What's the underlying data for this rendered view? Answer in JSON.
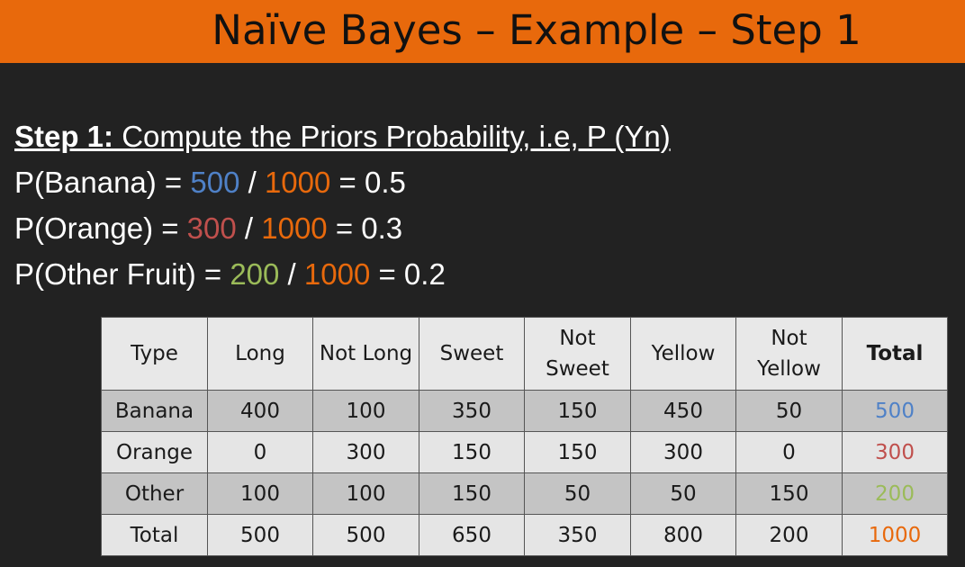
{
  "title": "Naïve Bayes – Example – Step 1",
  "step": {
    "label": "Step 1:",
    "description": " Compute the Priors Probability, i.e, P (Yn)"
  },
  "priors": [
    {
      "prefix": "P(Banana) = ",
      "count": "500",
      "separator": " / ",
      "total": "1000",
      "result": " = 0.5",
      "count_color": "#4f81c7"
    },
    {
      "prefix": "P(Orange) = ",
      "count": "300",
      "separator": " / ",
      "total": "1000",
      "result": " = 0.3",
      "count_color": "#c0504d"
    },
    {
      "prefix": "P(Other Fruit) = ",
      "count": "200",
      "separator": " / ",
      "total": "1000",
      "result": " = 0.2",
      "count_color": "#9bbb59"
    }
  ],
  "table": {
    "headers": [
      "Type",
      "Long",
      "Not Long",
      "Sweet",
      "Not Sweet",
      "Yellow",
      "Not Yellow",
      "Total"
    ],
    "rows": [
      [
        "Banana",
        "400",
        "100",
        "350",
        "150",
        "450",
        "50",
        "500"
      ],
      [
        "Orange",
        "0",
        "300",
        "150",
        "150",
        "300",
        "0",
        "300"
      ],
      [
        "Other",
        "100",
        "100",
        "150",
        "50",
        "50",
        "150",
        "200"
      ],
      [
        "Total",
        "500",
        "500",
        "650",
        "350",
        "800",
        "200",
        "1000"
      ]
    ],
    "total_colors": [
      "#4f81c7",
      "#c0504d",
      "#9bbb59",
      "#e8690c"
    ]
  },
  "colors": {
    "accent": "#e8690c",
    "background": "#222222"
  }
}
